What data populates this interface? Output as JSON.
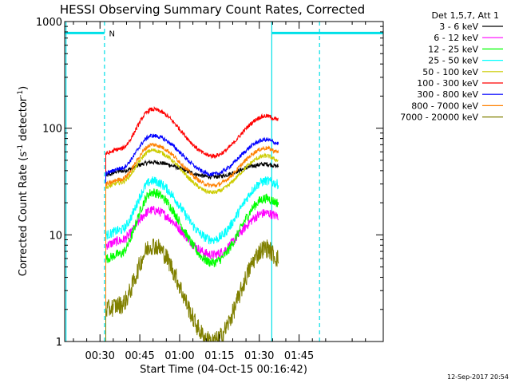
{
  "chart_data": {
    "type": "line",
    "title": "HESSI Observing Summary Count Rates, Corrected",
    "xlabel": "Start Time (04-Oct-15 00:16:42)",
    "ylabel_main": "Corrected Count Rate (s",
    "ylabel_sup1": "-1",
    "ylabel_mid": " detector",
    "ylabel_sup2": "-1",
    "ylabel_end": ")",
    "yscale": "log",
    "ylim": [
      1,
      1000
    ],
    "xlim_minutes": [
      16.7,
      136.7
    ],
    "x_ticks": [
      {
        "minute": 30,
        "label": "00:30"
      },
      {
        "minute": 45,
        "label": "00:45"
      },
      {
        "minute": 60,
        "label": "01:00"
      },
      {
        "minute": 75,
        "label": "01:15"
      },
      {
        "minute": 90,
        "label": "01:30"
      },
      {
        "minute": 105,
        "label": "01:45"
      }
    ],
    "y_ticks": [
      {
        "value": 1,
        "label": "1"
      },
      {
        "value": 10,
        "label": "10"
      },
      {
        "value": 100,
        "label": "100"
      },
      {
        "value": 1000,
        "label": "1000"
      }
    ],
    "data_start_minute": 32.2,
    "data_end_minute": 97.2,
    "legend_title": "Det 1,5,7, Att 1",
    "legend_position": "right, outside plot",
    "series": [
      {
        "name": "3 - 6 keV",
        "color": "#000000",
        "start": 36,
        "peak1": 48,
        "min": 35,
        "peak2": 46,
        "end": 44
      },
      {
        "name": "6 - 12 keV",
        "color": "#ff00ff",
        "start": 8,
        "peak1": 17,
        "min": 6.5,
        "peak2": 16,
        "end": 15
      },
      {
        "name": "12 - 25 keV",
        "color": "#00ff00",
        "start": 6,
        "peak1": 25,
        "min": 5.5,
        "peak2": 22,
        "end": 20
      },
      {
        "name": "25 - 50 keV",
        "color": "#00ffff",
        "start": 10,
        "peak1": 32,
        "min": 9,
        "peak2": 32,
        "end": 30
      },
      {
        "name": "50 - 100 keV",
        "color": "#cccc00",
        "start": 28,
        "peak1": 62,
        "min": 25,
        "peak2": 55,
        "end": 50
      },
      {
        "name": "100 - 300 keV",
        "color": "#ff0000",
        "start": 58,
        "peak1": 150,
        "min": 55,
        "peak2": 130,
        "end": 120
      },
      {
        "name": "300 - 800 keV",
        "color": "#0000ff",
        "start": 38,
        "peak1": 85,
        "min": 37,
        "peak2": 78,
        "end": 72
      },
      {
        "name": "800 - 7000 keV",
        "color": "#ff8000",
        "start": 30,
        "peak1": 70,
        "min": 29,
        "peak2": 65,
        "end": 60
      },
      {
        "name": "7000 - 20000 keV",
        "color": "#808000",
        "start": 2,
        "peak1": 8,
        "min": 1,
        "peak2": 7.5,
        "end": 6
      }
    ],
    "flags": {
      "saa_bars": [
        {
          "from_minute": 16.7,
          "to_minute": 31.7,
          "value": 780
        },
        {
          "from_minute": 94.7,
          "to_minute": 136.7,
          "value": 780
        }
      ],
      "night_marker_label": "N",
      "night_marker_minute": 32.2,
      "vertical_lines": [
        {
          "minute": 17.2,
          "style": "solid"
        },
        {
          "minute": 31.7,
          "style": "dashed"
        },
        {
          "minute": 94.7,
          "style": "solid"
        },
        {
          "minute": 112.7,
          "style": "dashed"
        }
      ],
      "color": "#00e0e8"
    }
  },
  "footer_timestamp": "12-Sep-2017 20:54"
}
